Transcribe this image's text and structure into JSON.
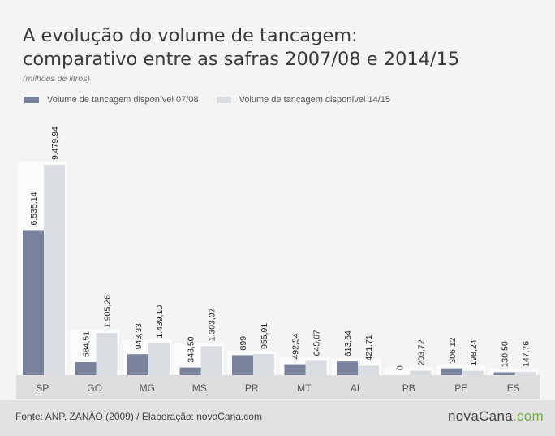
{
  "title_line1": "A evolução do volume de tancagem:",
  "title_line2": "comparativo entre as safras 2007/08 e 2014/15",
  "subtitle": "(milhões de litros)",
  "colors": {
    "series1": "#78829c",
    "series2": "#d9dce0",
    "panel": "#fbfbfb",
    "axis": "#dedede"
  },
  "chart_data": {
    "type": "bar",
    "categories": [
      "SP",
      "GO",
      "MG",
      "MS",
      "PR",
      "MT",
      "AL",
      "PB",
      "PE",
      "ES"
    ],
    "series": [
      {
        "name": "Volume de tancagem disponível 07/08",
        "values": [
          6535.14,
          584.51,
          943.33,
          343.5,
          899,
          492.54,
          613.64,
          0,
          306.12,
          130.5
        ],
        "labels": [
          "6.535,14",
          "584,51",
          "943,33",
          "343,50",
          "899",
          "492,54",
          "613,64",
          "0",
          "306,12",
          "130,50"
        ]
      },
      {
        "name": "Volume de tancagem disponível 14/15",
        "values": [
          9479.94,
          1905.26,
          1439.1,
          1303.07,
          955.91,
          645.67,
          421.71,
          203.72,
          198.24,
          147.76
        ],
        "labels": [
          "9.479,94",
          "1.905,26",
          "1.439,10",
          "1.303,07",
          "955,91",
          "645,67",
          "421,71",
          "203,72",
          "198,24",
          "147,76"
        ]
      }
    ]
  },
  "footer": {
    "source": "Fonte: ANP, ZANÃO (2009)  /  Elaboração: novaCana.com",
    "brand_main": "novaCana",
    "brand_dot": ".com"
  }
}
